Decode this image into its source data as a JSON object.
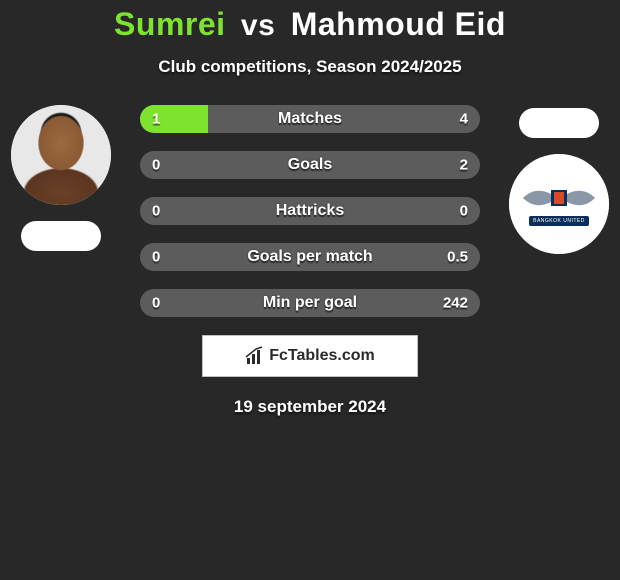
{
  "title": {
    "player1": "Sumrei",
    "separator": "vs",
    "player2": "Mahmoud Eid"
  },
  "subtitle": "Club competitions, Season 2024/2025",
  "bars": [
    {
      "label": "Matches",
      "left_val": "1",
      "right_val": "4",
      "left_pct": 20,
      "right_pct": 0
    },
    {
      "label": "Goals",
      "left_val": "0",
      "right_val": "2",
      "left_pct": 0,
      "right_pct": 0
    },
    {
      "label": "Hattricks",
      "left_val": "0",
      "right_val": "0",
      "left_pct": 0,
      "right_pct": 0
    },
    {
      "label": "Goals per match",
      "left_val": "0",
      "right_val": "0.5",
      "left_pct": 0,
      "right_pct": 0
    },
    {
      "label": "Min per goal",
      "left_val": "0",
      "right_val": "242",
      "left_pct": 0,
      "right_pct": 0
    }
  ],
  "logo_text": "FcTables.com",
  "date": "19 september 2024",
  "right_player_banner": "BANGKOK UNITED",
  "colors": {
    "accent_green": "#7ee32f",
    "bar_bg": "#5c5c5c",
    "bar_fill_right": "#a3a3a3",
    "page_bg": "#282828"
  }
}
